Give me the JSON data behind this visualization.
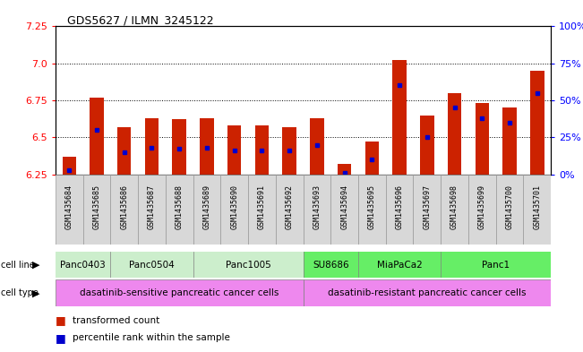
{
  "title": "GDS5627 / ILMN_3245122",
  "samples": [
    "GSM1435684",
    "GSM1435685",
    "GSM1435686",
    "GSM1435687",
    "GSM1435688",
    "GSM1435689",
    "GSM1435690",
    "GSM1435691",
    "GSM1435692",
    "GSM1435693",
    "GSM1435694",
    "GSM1435695",
    "GSM1435696",
    "GSM1435697",
    "GSM1435698",
    "GSM1435699",
    "GSM1435700",
    "GSM1435701"
  ],
  "transformed_count": [
    6.37,
    6.77,
    6.57,
    6.63,
    6.62,
    6.63,
    6.58,
    6.58,
    6.57,
    6.63,
    6.32,
    6.47,
    7.02,
    6.65,
    6.8,
    6.73,
    6.7,
    6.95
  ],
  "percentile_rank": [
    3,
    30,
    15,
    18,
    17,
    18,
    16,
    16,
    16,
    20,
    1,
    10,
    60,
    25,
    45,
    38,
    35,
    55
  ],
  "cell_lines": [
    {
      "name": "Panc0403",
      "start": 0,
      "end": 1,
      "color": "#cceecc"
    },
    {
      "name": "Panc0504",
      "start": 2,
      "end": 4,
      "color": "#cceecc"
    },
    {
      "name": "Panc1005",
      "start": 5,
      "end": 8,
      "color": "#cceecc"
    },
    {
      "name": "SU8686",
      "start": 9,
      "end": 10,
      "color": "#66ee66"
    },
    {
      "name": "MiaPaCa2",
      "start": 11,
      "end": 13,
      "color": "#66ee66"
    },
    {
      "name": "Panc1",
      "start": 14,
      "end": 17,
      "color": "#66ee66"
    }
  ],
  "sensitive_range": [
    0,
    8
  ],
  "resistant_range": [
    9,
    17
  ],
  "sensitive_label": "dasatinib-sensitive pancreatic cancer cells",
  "resistant_label": "dasatinib-resistant pancreatic cancer cells",
  "sensitive_color": "#ee88ee",
  "resistant_color": "#ee88ee",
  "ylim_left": [
    6.25,
    7.25
  ],
  "ylim_right": [
    0,
    100
  ],
  "yticks_left": [
    6.25,
    6.5,
    6.75,
    7.0,
    7.25
  ],
  "yticks_right": [
    0,
    25,
    50,
    75,
    100
  ],
  "ytick_labels_right": [
    "0%",
    "25%",
    "50%",
    "75%",
    "100%"
  ],
  "bar_color": "#cc2200",
  "marker_color": "#0000cc",
  "bar_bottom": 6.25,
  "xtick_bg": "#d8d8d8"
}
